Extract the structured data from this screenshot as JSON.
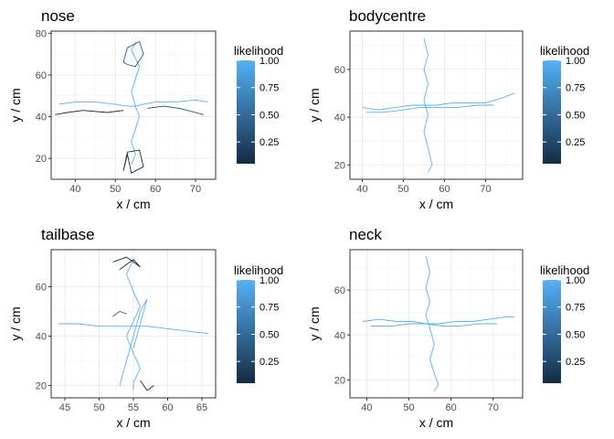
{
  "chart_data": [
    {
      "type": "line",
      "title": "nose",
      "xlabel": "x / cm",
      "ylabel": "y / cm",
      "xticks": [
        40,
        50,
        60,
        70
      ],
      "yticks": [
        20,
        40,
        60,
        80
      ],
      "xlim": [
        34,
        75
      ],
      "ylim": [
        10,
        81
      ],
      "grid": true,
      "legend": {
        "title": "likelihood",
        "ticks": [
          "1.00",
          "0.75",
          "0.50",
          "0.25"
        ],
        "tick_values": [
          1.0,
          0.75,
          0.5,
          0.25
        ],
        "range": [
          0.05,
          1.0
        ],
        "position": "right"
      },
      "series": [
        {
          "color": "#56B1F7",
          "x": [
            36,
            40,
            45,
            50,
            53,
            55,
            57,
            60,
            65,
            70,
            73
          ],
          "y": [
            46,
            47,
            47,
            46,
            45,
            45,
            46,
            47,
            47,
            48,
            47
          ]
        },
        {
          "color": "#56B1F7",
          "x": [
            54,
            55,
            54,
            55,
            56,
            55,
            54,
            55,
            56,
            55,
            54,
            55,
            55
          ],
          "y": [
            17,
            22,
            28,
            34,
            40,
            45,
            52,
            58,
            64,
            68,
            72,
            75,
            76
          ]
        },
        {
          "color": "#132B43",
          "x": [
            35,
            38,
            42,
            48,
            52
          ],
          "y": [
            41,
            42,
            43,
            42,
            43
          ]
        },
        {
          "color": "#1F4A6E",
          "x": [
            58,
            62,
            66,
            70,
            72
          ],
          "y": [
            44,
            45,
            44,
            42,
            41
          ]
        },
        {
          "color": "#132B43",
          "x": [
            52,
            53,
            54,
            57,
            56,
            53,
            52
          ],
          "y": [
            14,
            22,
            13,
            16,
            24,
            23,
            14
          ]
        },
        {
          "color": "#2A5B85",
          "x": [
            52,
            53,
            56,
            57,
            55,
            53,
            52
          ],
          "y": [
            66,
            73,
            76,
            70,
            64,
            65,
            66
          ]
        }
      ]
    },
    {
      "type": "line",
      "title": "bodycentre",
      "xlabel": "x / cm",
      "ylabel": "y / cm",
      "xticks": [
        40,
        50,
        60,
        70
      ],
      "yticks": [
        20,
        40,
        60
      ],
      "xlim": [
        37,
        79
      ],
      "ylim": [
        14,
        76
      ],
      "grid": true,
      "legend": {
        "title": "likelihood",
        "ticks": [
          "1.00",
          "0.75",
          "0.50",
          "0.25"
        ],
        "tick_values": [
          1.0,
          0.75,
          0.5,
          0.25
        ],
        "range": [
          0.05,
          1.0
        ],
        "position": "right"
      },
      "series": [
        {
          "color": "#56B1F7",
          "x": [
            40,
            44,
            48,
            52,
            55,
            58,
            62,
            66,
            70,
            74,
            77
          ],
          "y": [
            44,
            43,
            44,
            45,
            45,
            45,
            46,
            46,
            46,
            48,
            50
          ]
        },
        {
          "color": "#56B1F7",
          "x": [
            55,
            56,
            55,
            56,
            55,
            56,
            55,
            56,
            57,
            56
          ],
          "y": [
            73,
            66,
            60,
            54,
            47,
            41,
            34,
            27,
            20,
            17
          ]
        },
        {
          "color": "#56B1F7",
          "x": [
            41,
            45,
            50,
            54,
            58,
            63,
            68,
            72
          ],
          "y": [
            42,
            42,
            43,
            44,
            44,
            44,
            45,
            45
          ]
        }
      ]
    },
    {
      "type": "line",
      "title": "tailbase",
      "xlabel": "x / cm",
      "ylabel": "y / cm",
      "xticks": [
        45,
        50,
        55,
        60,
        65
      ],
      "yticks": [
        20,
        40,
        60
      ],
      "xlim": [
        43,
        67
      ],
      "ylim": [
        15,
        75
      ],
      "grid": true,
      "legend": {
        "title": "likelihood",
        "ticks": [
          "1.00",
          "0.75",
          "0.50",
          "0.25"
        ],
        "tick_values": [
          1.0,
          0.75,
          0.5,
          0.25
        ],
        "range": [
          0.05,
          1.0
        ],
        "position": "right"
      },
      "series": [
        {
          "color": "#56B1F7",
          "x": [
            44,
            47,
            50,
            53,
            55,
            57,
            60,
            63,
            66
          ],
          "y": [
            45,
            45,
            44,
            44,
            44,
            44,
            43,
            42,
            41
          ]
        },
        {
          "color": "#56B1F7",
          "x": [
            55,
            54,
            55,
            56,
            55,
            54,
            55,
            56,
            55,
            55
          ],
          "y": [
            71,
            65,
            58,
            52,
            46,
            40,
            33,
            27,
            21,
            18
          ]
        },
        {
          "color": "#56B1F7",
          "x": [
            53,
            54,
            55,
            56,
            57,
            56,
            55
          ],
          "y": [
            20,
            30,
            40,
            50,
            55,
            45,
            35
          ]
        },
        {
          "color": "#132B43",
          "x": [
            52,
            54,
            56,
            55,
            53
          ],
          "y": [
            70,
            72,
            68,
            71,
            67
          ]
        },
        {
          "color": "#132B43",
          "x": [
            56,
            57,
            58
          ],
          "y": [
            22,
            18,
            20
          ]
        },
        {
          "color": "#2A5B85",
          "x": [
            52,
            53,
            54
          ],
          "y": [
            48,
            50,
            49
          ]
        }
      ]
    },
    {
      "type": "line",
      "title": "neck",
      "xlabel": "x / cm",
      "ylabel": "y / cm",
      "xticks": [
        40,
        50,
        60,
        70
      ],
      "yticks": [
        20,
        40,
        60
      ],
      "xlim": [
        36,
        77
      ],
      "ylim": [
        12,
        78
      ],
      "grid": true,
      "legend": {
        "title": "likelihood",
        "ticks": [
          "1.00",
          "0.75",
          "0.50",
          "0.25"
        ],
        "tick_values": [
          1.0,
          0.75,
          0.5,
          0.25
        ],
        "range": [
          0.05,
          1.0
        ],
        "position": "right"
      },
      "series": [
        {
          "color": "#56B1F7",
          "x": [
            39,
            43,
            47,
            51,
            54,
            57,
            61,
            65,
            69,
            73,
            75
          ],
          "y": [
            46,
            47,
            46,
            46,
            45,
            45,
            46,
            46,
            47,
            48,
            48
          ]
        },
        {
          "color": "#56B1F7",
          "x": [
            54,
            55,
            54,
            55,
            54,
            55,
            56,
            55,
            56,
            57,
            56
          ],
          "y": [
            75,
            68,
            61,
            55,
            49,
            43,
            36,
            29,
            23,
            18,
            15
          ]
        },
        {
          "color": "#56B1F7",
          "x": [
            41,
            46,
            50,
            54,
            58,
            62,
            67,
            71
          ],
          "y": [
            44,
            44,
            45,
            45,
            44,
            44,
            45,
            45
          ]
        }
      ]
    }
  ]
}
